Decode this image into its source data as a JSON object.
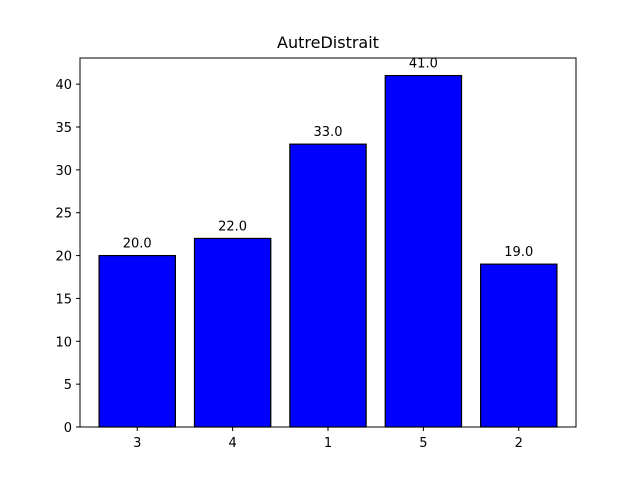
{
  "chart_data": {
    "type": "bar",
    "title": "AutreDistrait",
    "xlabel": "",
    "ylabel": "",
    "categories": [
      "3",
      "4",
      "1",
      "5",
      "2"
    ],
    "values": [
      20.0,
      22.0,
      33.0,
      41.0,
      19.0
    ],
    "value_labels": [
      "20.0",
      "22.0",
      "33.0",
      "41.0",
      "19.0"
    ],
    "ylim": [
      0,
      43.05
    ],
    "yticks": [
      0,
      5,
      10,
      15,
      20,
      25,
      30,
      35,
      40
    ],
    "grid": false,
    "bar_color": "#0000ff",
    "bar_edge_color": "#000000"
  }
}
